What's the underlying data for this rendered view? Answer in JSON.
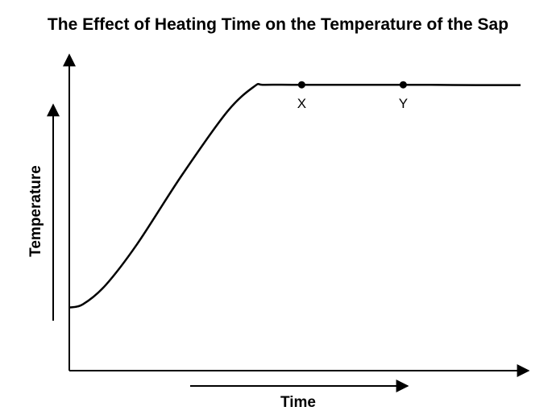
{
  "chart_data": {
    "type": "line",
    "title": "The Effect of Heating Time on the Temperature of the Sap",
    "xlabel": "Time",
    "ylabel": "Temperature",
    "axes_ticks": false,
    "grid": false,
    "xlim": [
      0,
      100
    ],
    "ylim": [
      0,
      100
    ],
    "series": [
      {
        "color": "#000000",
        "x": [
          0,
          3,
          8,
          15,
          25,
          35,
          41,
          43,
          50,
          60,
          70,
          80,
          90,
          100
        ],
        "y": [
          20,
          21,
          27,
          40,
          62,
          82,
          90,
          90.5,
          90.5,
          90.5,
          90.5,
          90.5,
          90.4,
          90.4
        ]
      }
    ],
    "points": [
      {
        "label": "X",
        "x": 51.5,
        "y": 90.5
      },
      {
        "label": "Y",
        "x": 74,
        "y": 90.5
      }
    ]
  }
}
